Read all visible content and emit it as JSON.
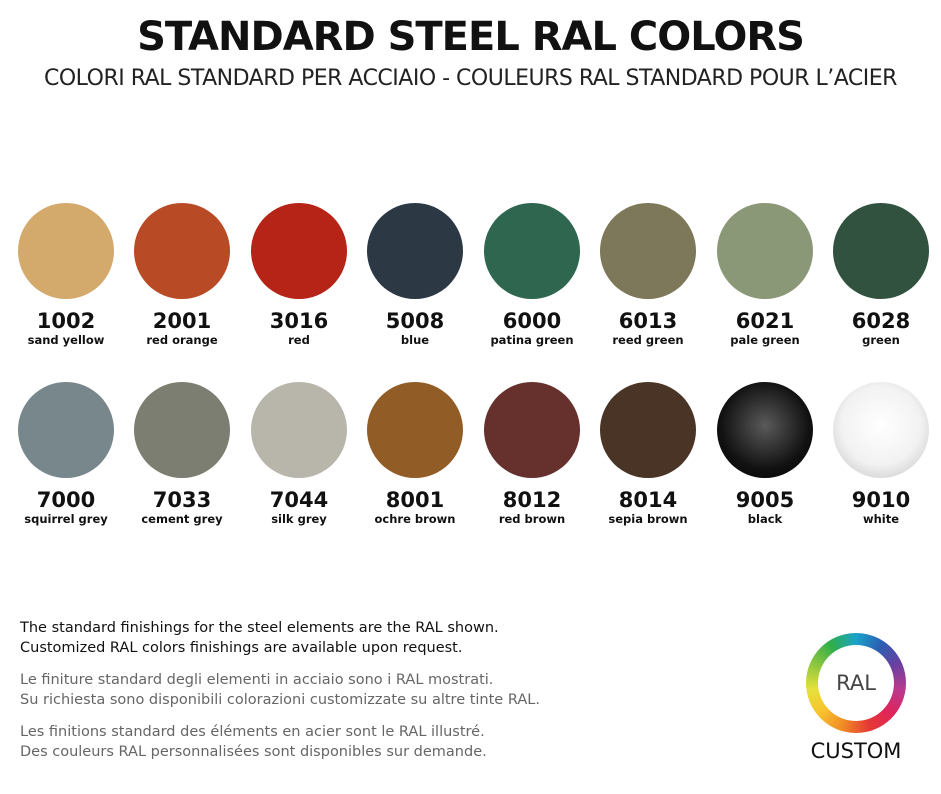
{
  "header": {
    "title": "STANDARD STEEL RAL COLORS",
    "subtitle": "COLORI RAL STANDARD PER ACCIAIO - COULEURS RAL STANDARD POUR L’ACIER"
  },
  "row1": [
    {
      "code": "1002",
      "name": "sand yellow",
      "color": "#d4aa6c"
    },
    {
      "code": "2001",
      "name": "red orange",
      "color": "#b84b26"
    },
    {
      "code": "3016",
      "name": "red",
      "color": "#b52416"
    },
    {
      "code": "5008",
      "name": "blue",
      "color": "#2c3844"
    },
    {
      "code": "6000",
      "name": "patina green",
      "color": "#2f6650"
    },
    {
      "code": "6013",
      "name": "reed green",
      "color": "#7e785a"
    },
    {
      "code": "6021",
      "name": "pale green",
      "color": "#8a9878"
    },
    {
      "code": "6028",
      "name": "green",
      "color": "#31523f"
    }
  ],
  "row2": [
    {
      "code": "7000",
      "name": "squirrel grey",
      "color": "#78878c"
    },
    {
      "code": "7033",
      "name": "cement grey",
      "color": "#7b7e70"
    },
    {
      "code": "7044",
      "name": "silk grey",
      "color": "#b8b6aa"
    },
    {
      "code": "8001",
      "name": "ochre brown",
      "color": "#925c26"
    },
    {
      "code": "8012",
      "name": "red brown",
      "color": "#66302c"
    },
    {
      "code": "8014",
      "name": "sepia brown",
      "color": "#4a3426"
    },
    {
      "code": "9005",
      "name": "black",
      "color": "#111111"
    },
    {
      "code": "9010",
      "name": "white",
      "color": "#f2f2f2"
    }
  ],
  "notes": {
    "en1": "The standard finishings for the steel elements are the RAL shown.",
    "en2": "Customized RAL colors finishings are available upon request.",
    "it1": "Le finiture standard degli elementi in acciaio sono i RAL mostrati.",
    "it2": "Su richiesta sono disponibili colorazioni customizzate su altre tinte RAL.",
    "fr1": "Les finitions standard des éléments en acier sont le RAL illustré.",
    "fr2": "Des couleurs RAL personnalisées sont disponibles sur demande."
  },
  "custom": {
    "logo_text": "RAL",
    "label": "CUSTOM"
  }
}
